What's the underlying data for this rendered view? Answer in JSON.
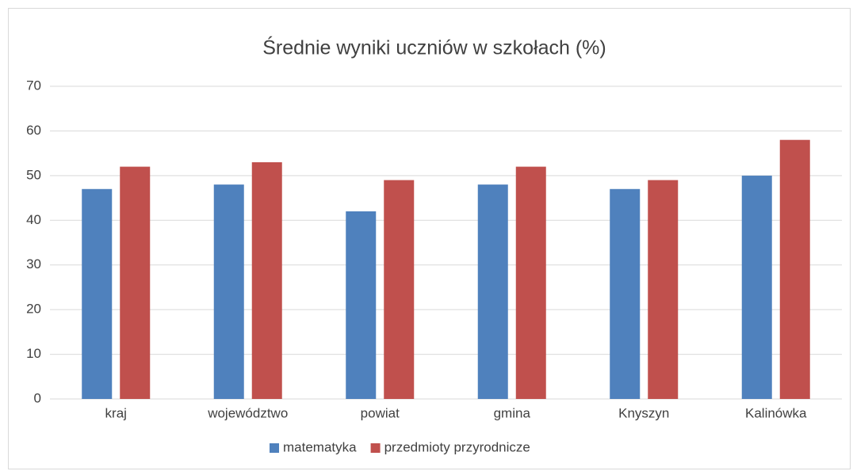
{
  "chart_data": {
    "type": "bar",
    "title": "Średnie wyniki uczniów w szkołach (%)",
    "categories": [
      "kraj",
      "województwo",
      "powiat",
      "gmina",
      "Knyszyn",
      "Kalinówka"
    ],
    "series": [
      {
        "name": "matematyka",
        "color": "#4f81bd",
        "values": [
          47,
          48,
          42,
          48,
          47,
          50
        ]
      },
      {
        "name": "przedmioty przyrodnicze",
        "color": "#c0504d",
        "values": [
          52,
          53,
          49,
          52,
          49,
          58
        ]
      }
    ],
    "ylim": [
      0,
      70
    ],
    "yticks": [
      0,
      10,
      20,
      30,
      40,
      50,
      60,
      70
    ],
    "grid": true,
    "legend": "bottom"
  }
}
